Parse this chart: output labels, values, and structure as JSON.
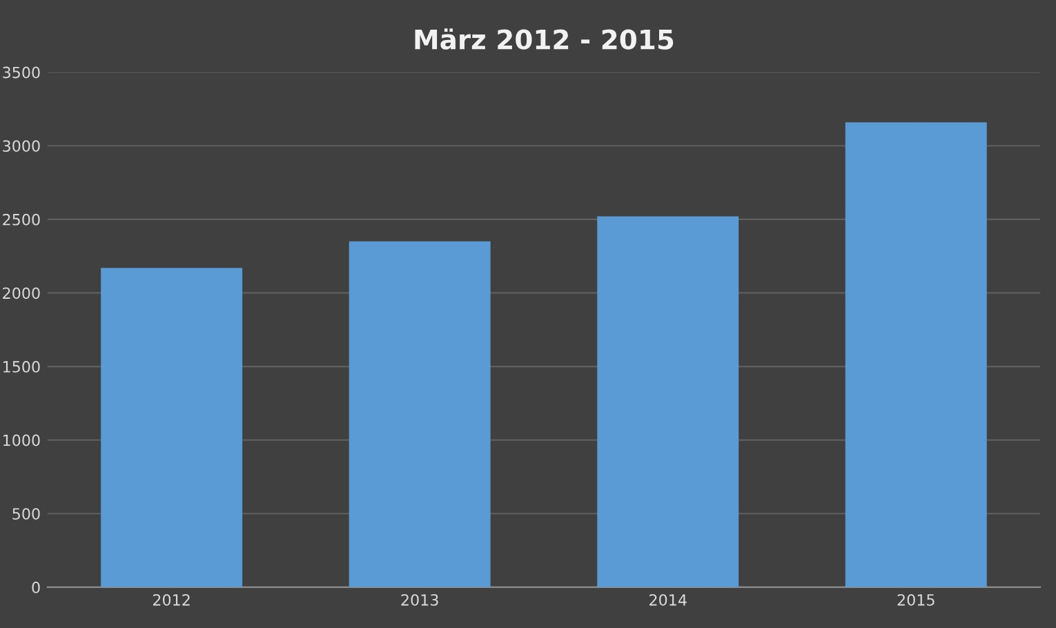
{
  "chart_data": {
    "type": "bar",
    "title": "März 2012 - 2015",
    "categories": [
      "2012",
      "2013",
      "2014",
      "2015"
    ],
    "values": [
      2170,
      2350,
      2520,
      3160
    ],
    "color": "#5b9bd5",
    "ylim": [
      0,
      3500
    ],
    "yticks": [
      0,
      500,
      1000,
      1500,
      2000,
      2500,
      3000,
      3500
    ],
    "grid": "y",
    "legend": false
  }
}
